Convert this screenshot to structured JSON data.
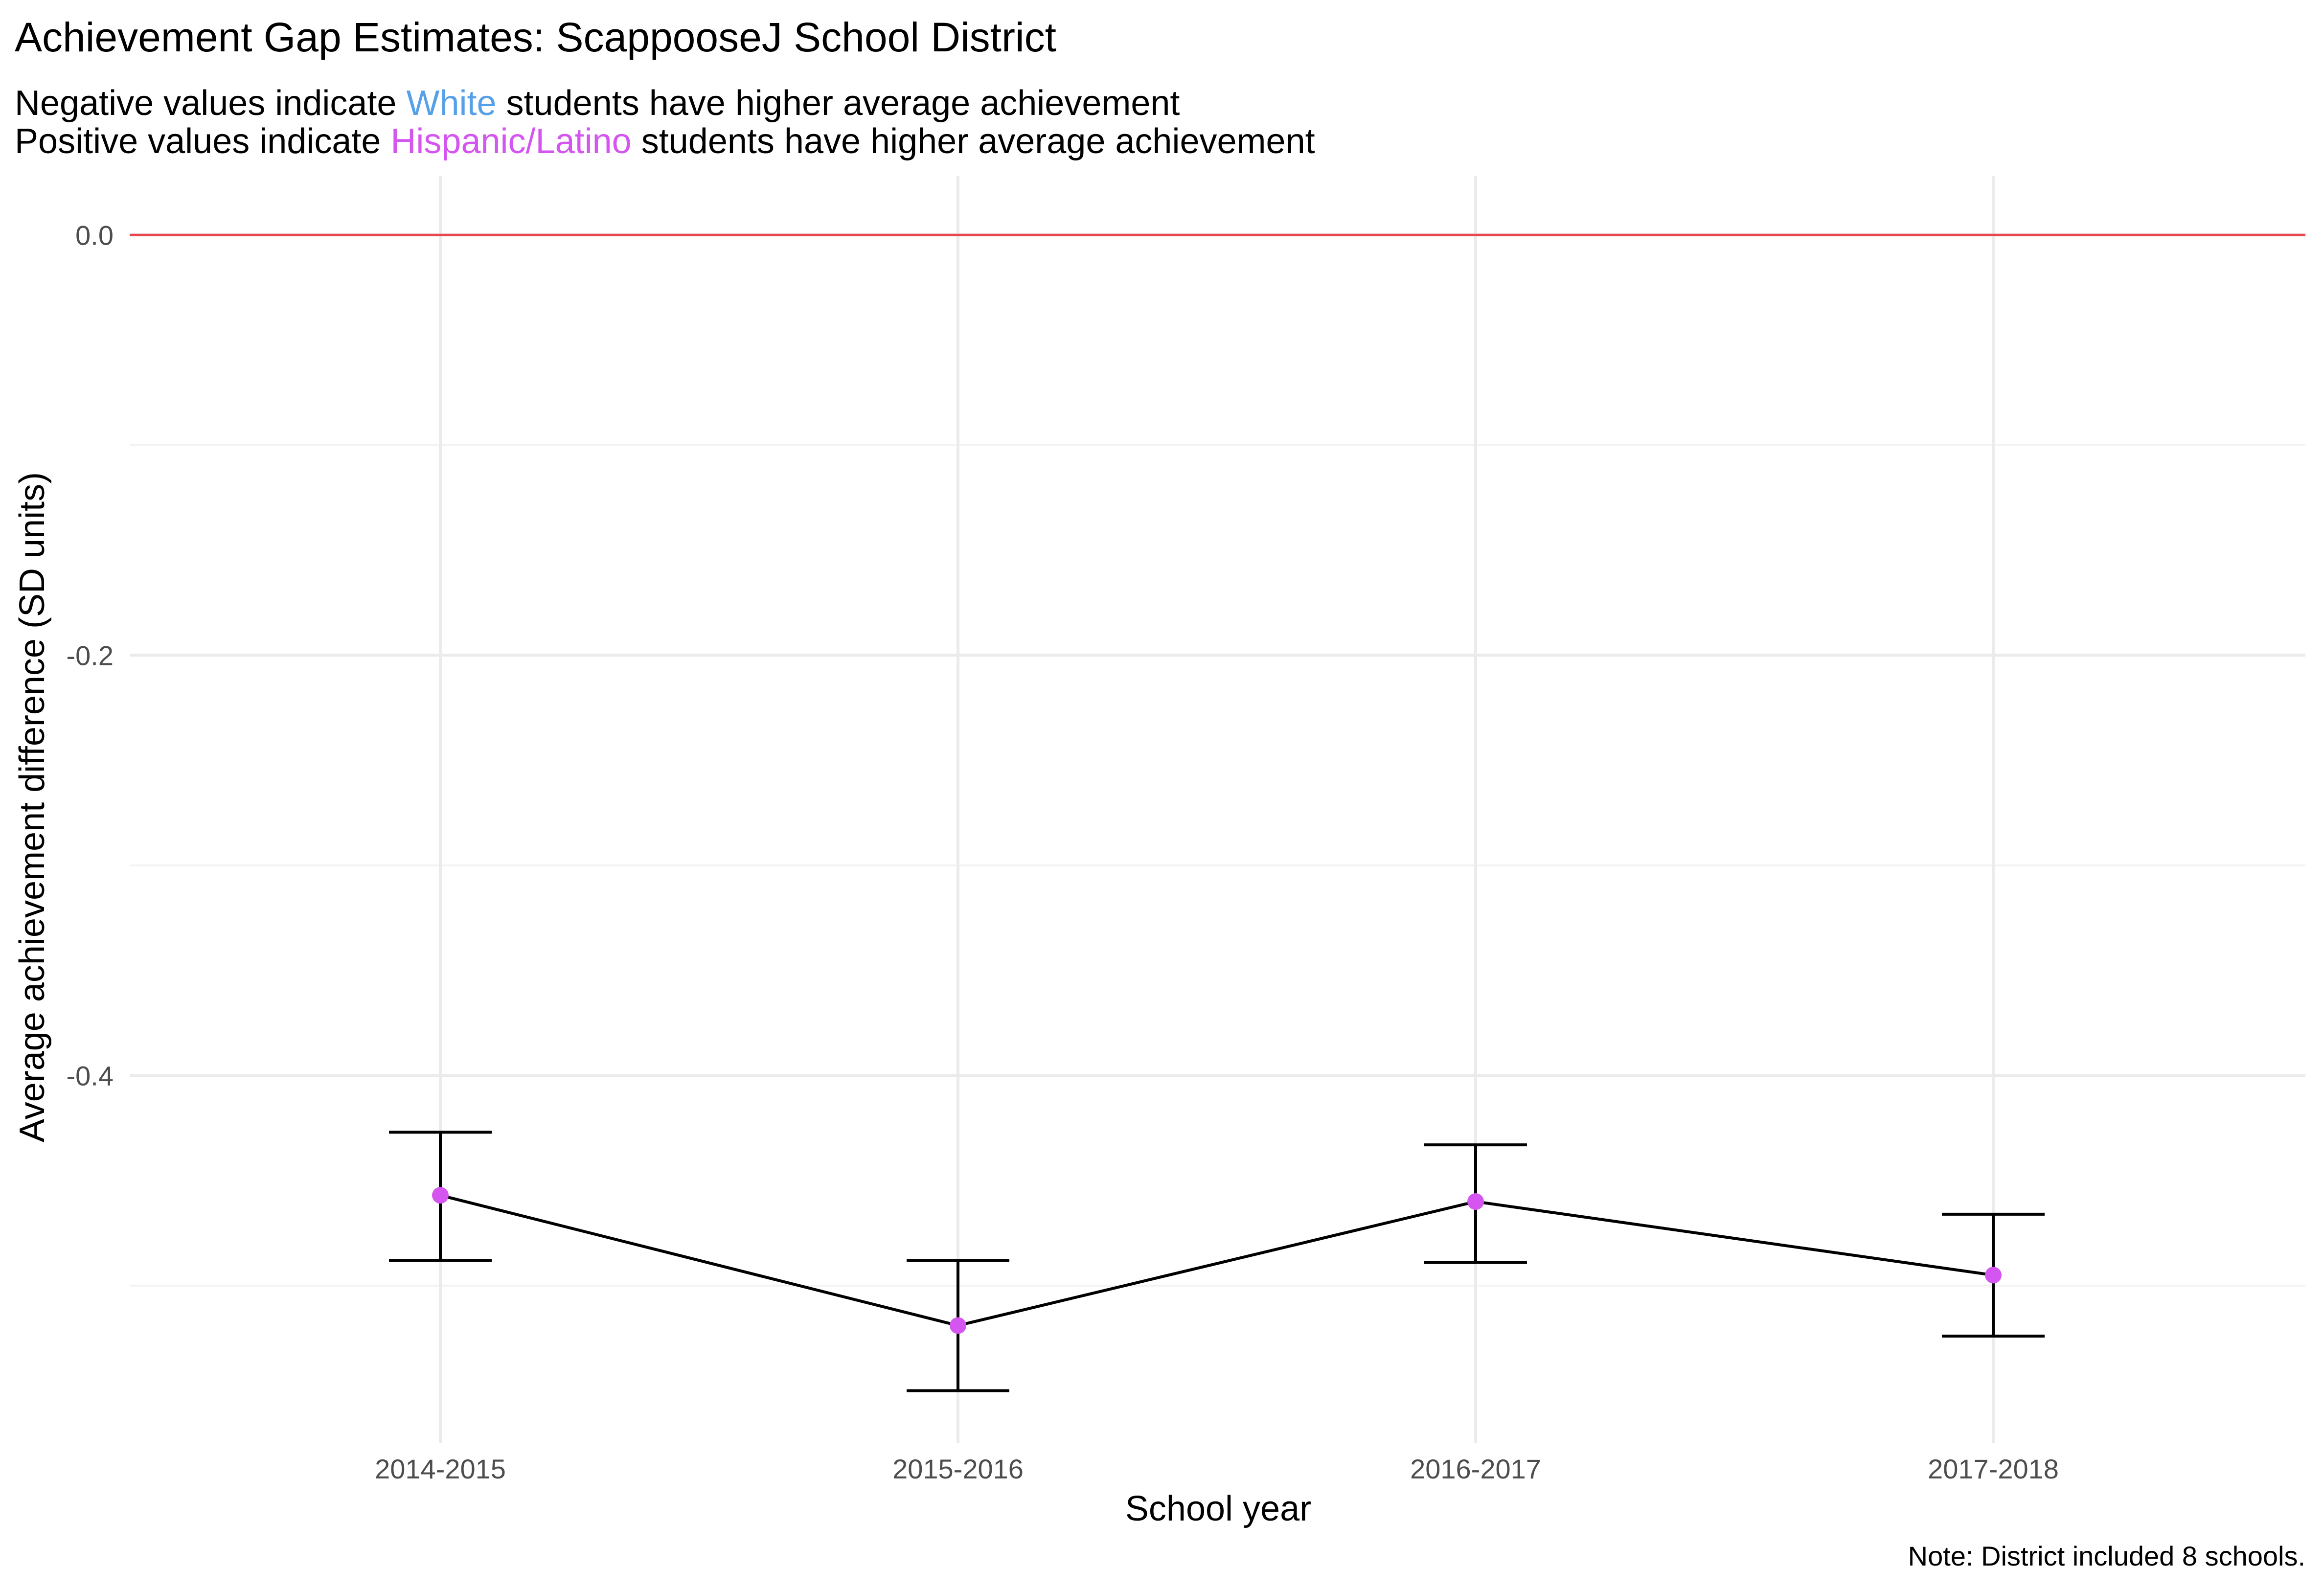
{
  "chart_data": {
    "type": "line",
    "title": "Achievement Gap Estimates: ScappooseJ School District",
    "subtitle_lines": [
      {
        "parts": [
          {
            "text": "Negative values indicate ",
            "color": "#000000"
          },
          {
            "text": "White",
            "color": "#56a0e8"
          },
          {
            "text": " students have higher average achievement",
            "color": "#000000"
          }
        ]
      },
      {
        "parts": [
          {
            "text": "Positive values indicate ",
            "color": "#000000"
          },
          {
            "text": "Hispanic/Latino",
            "color": "#d455f0"
          },
          {
            "text": " students have higher average achievement",
            "color": "#000000"
          }
        ]
      }
    ],
    "xlabel": "School year",
    "ylabel": "Average achievement difference (SD units)",
    "caption": "Note: District included 8 schools.",
    "categories": [
      "2014-2015",
      "2015-2016",
      "2016-2017",
      "2017-2018"
    ],
    "values": [
      -0.457,
      -0.519,
      -0.46,
      -0.495
    ],
    "error_low": [
      -0.488,
      -0.55,
      -0.489,
      -0.524
    ],
    "error_high": [
      -0.427,
      -0.488,
      -0.433,
      -0.466
    ],
    "ylim": [
      -0.575,
      0.028
    ],
    "y_ticks": [
      0.0,
      -0.2,
      -0.4
    ],
    "y_tick_labels": [
      "0.0",
      "-0.2",
      "-0.4"
    ],
    "reference_line": {
      "value": 0.0,
      "color": "#e8474c"
    },
    "point_color": "#d455f0",
    "line_color": "#000000",
    "grid": true
  }
}
